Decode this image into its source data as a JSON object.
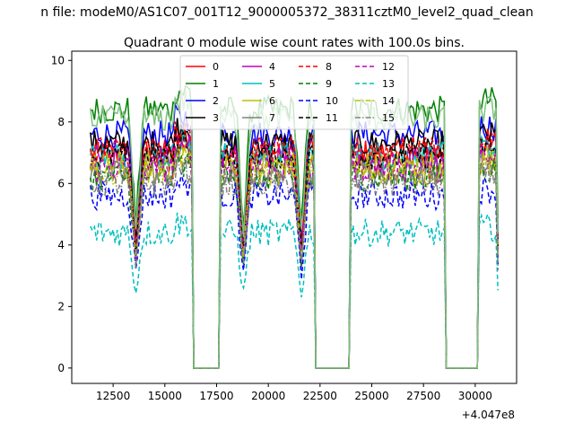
{
  "figure": {
    "supertitle": "n file: modeM0/AS1C07_001T12_9000005372_38311cztM0_level2_quad_clean"
  },
  "chart_data": {
    "type": "line",
    "title": "Quadrant 0 module wise count rates with 100.0s bins.",
    "xlabel": "",
    "ylabel": "",
    "x_offset_label": "+4.047e8",
    "xlim": [
      10500,
      32000
    ],
    "ylim": [
      -0.5,
      10.3
    ],
    "x_ticks": [
      12500,
      15000,
      17500,
      20000,
      22500,
      25000,
      27500,
      30000
    ],
    "y_ticks": [
      0,
      2,
      4,
      6,
      8,
      10
    ],
    "grid": false,
    "legend_position": "top-center",
    "legend_columns": 4,
    "gaps": [
      [
        16300,
        17700
      ],
      [
        22200,
        24000
      ],
      [
        28500,
        30200
      ]
    ],
    "dips": [
      13600,
      18800,
      21600
    ],
    "series": [
      {
        "name": "0",
        "color": "#ff0000",
        "dash": "solid",
        "base": 7.0
      },
      {
        "name": "1",
        "color": "#008000",
        "dash": "solid",
        "base": 8.4
      },
      {
        "name": "2",
        "color": "#0000ff",
        "dash": "solid",
        "base": 7.6
      },
      {
        "name": "3",
        "color": "#000000",
        "dash": "solid",
        "base": 7.3
      },
      {
        "name": "4",
        "color": "#bf00bf",
        "dash": "solid",
        "base": 6.8
      },
      {
        "name": "5",
        "color": "#00bfbf",
        "dash": "solid",
        "base": 6.9
      },
      {
        "name": "6",
        "color": "#bfbf00",
        "dash": "solid",
        "base": 6.6
      },
      {
        "name": "7",
        "color": "#808080",
        "dash": "solid",
        "base": 6.3
      },
      {
        "name": "8",
        "color": "#ff0000",
        "dash": "dashed",
        "base": 7.1
      },
      {
        "name": "9",
        "color": "#008000",
        "dash": "dashed",
        "base": 6.2
      },
      {
        "name": "10",
        "color": "#0000ff",
        "dash": "dashed",
        "base": 5.6
      },
      {
        "name": "11",
        "color": "#000000",
        "dash": "dashed",
        "base": 6.9
      },
      {
        "name": "12",
        "color": "#bf00bf",
        "dash": "dashed",
        "base": 6.5
      },
      {
        "name": "13",
        "color": "#00bfbf",
        "dash": "dashed",
        "base": 4.4
      },
      {
        "name": "14",
        "color": "#bfbf00",
        "dash": "dashdot",
        "base": 6.4
      },
      {
        "name": "15",
        "color": "#808080",
        "dash": "dashdot",
        "base": 6.0
      }
    ],
    "highlight_series": {
      "color": "#80c080",
      "base": 8.1
    }
  }
}
